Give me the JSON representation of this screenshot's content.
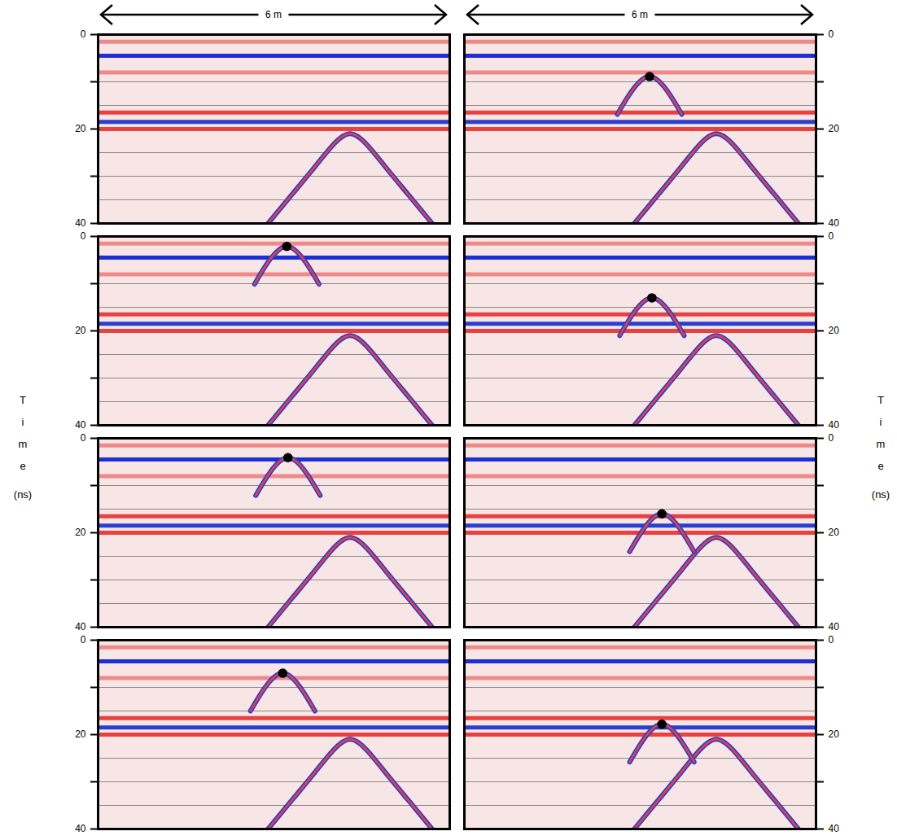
{
  "x_header": "6 m",
  "y_label": "Time (ns)",
  "chart_data": [
    {
      "type": "radargram",
      "xlim": [
        0,
        6
      ],
      "ylim": [
        0,
        40
      ],
      "yticks": [
        0,
        20,
        40
      ],
      "minor_yticks": [
        10,
        30
      ],
      "tick_labels": "y",
      "gridlines": [
        10,
        15,
        20,
        25,
        30,
        35,
        40
      ],
      "bands": [
        {
          "t": 1.5,
          "color": "#f08a8a"
        },
        {
          "t": 4.5,
          "color": "#1b2fd6"
        },
        {
          "t": 8,
          "color": "#f08a8a"
        },
        {
          "t": 16.5,
          "color": "#e8413f"
        },
        {
          "t": 18.5,
          "color": "#2a3fd0"
        },
        {
          "t": 20,
          "color": "#e8413f"
        }
      ],
      "hyperbolas": [
        {
          "x": [
            2.9,
            3.3,
            3.7,
            4.0,
            4.3,
            4.6,
            4.9,
            5.3,
            5.7
          ],
          "t": [
            40,
            34,
            28,
            23.5,
            21,
            23.5,
            28,
            34,
            40
          ]
        }
      ],
      "marker": null
    },
    {
      "type": "radargram",
      "xlim": [
        0,
        6
      ],
      "ylim": [
        0,
        40
      ],
      "yticks": [
        0,
        20,
        40
      ],
      "minor_yticks": [
        10,
        30
      ],
      "tick_labels": "y",
      "gridlines": [
        10,
        15,
        20,
        25,
        30,
        35,
        40
      ],
      "bands": [
        {
          "t": 1.5,
          "color": "#f08a8a"
        },
        {
          "t": 4.5,
          "color": "#1b2fd6"
        },
        {
          "t": 8,
          "color": "#f08a8a"
        },
        {
          "t": 16.5,
          "color": "#e8413f"
        },
        {
          "t": 18.5,
          "color": "#2a3fd0"
        },
        {
          "t": 20,
          "color": "#e8413f"
        }
      ],
      "hyperbolas": [
        {
          "x": [
            2.9,
            3.3,
            3.7,
            4.0,
            4.3,
            4.6,
            4.9,
            5.3,
            5.7
          ],
          "t": [
            40,
            34,
            28,
            23.5,
            21,
            23.5,
            28,
            34,
            40
          ]
        },
        {
          "x": [
            2.61,
            2.86,
            3.16,
            3.46,
            3.71
          ],
          "t": [
            16.9,
            11.9,
            8.9,
            11.9,
            16.9
          ]
        }
      ],
      "marker": {
        "x": 3.16,
        "t": 8.9
      }
    },
    {
      "type": "radargram",
      "xlim": [
        0,
        6
      ],
      "ylim": [
        0,
        40
      ],
      "yticks": [
        0,
        20,
        40
      ],
      "minor_yticks": [
        10,
        30
      ],
      "tick_labels": "y",
      "gridlines": [
        10,
        15,
        20,
        25,
        30,
        35,
        40
      ],
      "bands": [
        {
          "t": 1.5,
          "color": "#f08a8a"
        },
        {
          "t": 4.5,
          "color": "#1b2fd6"
        },
        {
          "t": 8,
          "color": "#f08a8a"
        },
        {
          "t": 16.5,
          "color": "#e8413f"
        },
        {
          "t": 18.5,
          "color": "#2a3fd0"
        },
        {
          "t": 20,
          "color": "#e8413f"
        }
      ],
      "hyperbolas": [
        {
          "x": [
            2.9,
            3.3,
            3.7,
            4.0,
            4.3,
            4.6,
            4.9,
            5.3,
            5.7
          ],
          "t": [
            40,
            34,
            28,
            23.5,
            21,
            23.5,
            28,
            34,
            40
          ]
        },
        {
          "x": [
            2.67,
            2.92,
            3.22,
            3.52,
            3.77
          ],
          "t": [
            10.1,
            5.1,
            2.1,
            5.1,
            10.1
          ]
        }
      ],
      "marker": {
        "x": 3.22,
        "t": 2.1
      }
    },
    {
      "type": "radargram",
      "xlim": [
        0,
        6
      ],
      "ylim": [
        0,
        40
      ],
      "yticks": [
        0,
        20,
        40
      ],
      "minor_yticks": [
        10,
        30
      ],
      "tick_labels": "y",
      "gridlines": [
        10,
        15,
        20,
        25,
        30,
        35,
        40
      ],
      "bands": [
        {
          "t": 1.5,
          "color": "#f08a8a"
        },
        {
          "t": 4.5,
          "color": "#1b2fd6"
        },
        {
          "t": 8,
          "color": "#f08a8a"
        },
        {
          "t": 16.5,
          "color": "#e8413f"
        },
        {
          "t": 18.5,
          "color": "#2a3fd0"
        },
        {
          "t": 20,
          "color": "#e8413f"
        }
      ],
      "hyperbolas": [
        {
          "x": [
            2.9,
            3.3,
            3.7,
            4.0,
            4.3,
            4.6,
            4.9,
            5.3,
            5.7
          ],
          "t": [
            40,
            34,
            28,
            23.5,
            21,
            23.5,
            28,
            34,
            40
          ]
        },
        {
          "x": [
            2.65,
            2.9,
            3.2,
            3.5,
            3.75
          ],
          "t": [
            21,
            16,
            13,
            16,
            21
          ]
        }
      ],
      "marker": {
        "x": 3.2,
        "t": 13.0
      }
    },
    {
      "type": "radargram",
      "xlim": [
        0,
        6
      ],
      "ylim": [
        0,
        40
      ],
      "yticks": [
        0,
        20,
        40
      ],
      "minor_yticks": [
        10,
        30
      ],
      "tick_labels": "y",
      "gridlines": [
        10,
        15,
        20,
        25,
        30,
        35,
        40
      ],
      "bands": [
        {
          "t": 1.5,
          "color": "#f08a8a"
        },
        {
          "t": 4.5,
          "color": "#1b2fd6"
        },
        {
          "t": 8,
          "color": "#f08a8a"
        },
        {
          "t": 16.5,
          "color": "#e8413f"
        },
        {
          "t": 18.5,
          "color": "#2a3fd0"
        },
        {
          "t": 20,
          "color": "#e8413f"
        }
      ],
      "hyperbolas": [
        {
          "x": [
            2.9,
            3.3,
            3.7,
            4.0,
            4.3,
            4.6,
            4.9,
            5.3,
            5.7
          ],
          "t": [
            40,
            34,
            28,
            23.5,
            21,
            23.5,
            28,
            34,
            40
          ]
        },
        {
          "x": [
            2.69,
            2.94,
            3.24,
            3.54,
            3.79
          ],
          "t": [
            12.1,
            7.1,
            4.1,
            7.1,
            12.1
          ]
        }
      ],
      "marker": {
        "x": 3.24,
        "t": 4.1
      }
    },
    {
      "type": "radargram",
      "xlim": [
        0,
        6
      ],
      "ylim": [
        0,
        40
      ],
      "yticks": [
        0,
        20,
        40
      ],
      "minor_yticks": [
        10,
        30
      ],
      "tick_labels": "y",
      "gridlines": [
        10,
        15,
        20,
        25,
        30,
        35,
        40
      ],
      "bands": [
        {
          "t": 1.5,
          "color": "#f08a8a"
        },
        {
          "t": 4.5,
          "color": "#1b2fd6"
        },
        {
          "t": 8,
          "color": "#f08a8a"
        },
        {
          "t": 16.5,
          "color": "#e8413f"
        },
        {
          "t": 18.5,
          "color": "#2a3fd0"
        },
        {
          "t": 20,
          "color": "#e8413f"
        }
      ],
      "hyperbolas": [
        {
          "x": [
            2.9,
            3.3,
            3.7,
            4.0,
            4.3,
            4.6,
            4.9,
            5.3,
            5.7
          ],
          "t": [
            40,
            34,
            28,
            23.5,
            21,
            23.5,
            28,
            34,
            40
          ]
        },
        {
          "x": [
            2.82,
            3.07,
            3.37,
            3.67,
            3.92
          ],
          "t": [
            24,
            19,
            16,
            19,
            24
          ]
        }
      ],
      "marker": {
        "x": 3.37,
        "t": 16.0
      }
    },
    {
      "type": "radargram",
      "xlim": [
        0,
        6
      ],
      "ylim": [
        0,
        40
      ],
      "yticks": [
        0,
        20,
        40
      ],
      "minor_yticks": [
        10,
        30
      ],
      "tick_labels": "y",
      "gridlines": [
        10,
        15,
        20,
        25,
        30,
        35,
        40
      ],
      "bands": [
        {
          "t": 1.5,
          "color": "#f08a8a"
        },
        {
          "t": 4.5,
          "color": "#1b2fd6"
        },
        {
          "t": 8,
          "color": "#f08a8a"
        },
        {
          "t": 16.5,
          "color": "#e8413f"
        },
        {
          "t": 18.5,
          "color": "#2a3fd0"
        },
        {
          "t": 20,
          "color": "#e8413f"
        }
      ],
      "hyperbolas": [
        {
          "x": [
            2.9,
            3.3,
            3.7,
            4.0,
            4.3,
            4.6,
            4.9,
            5.3,
            5.7
          ],
          "t": [
            40,
            34,
            28,
            23.5,
            21,
            23.5,
            28,
            34,
            40
          ]
        },
        {
          "x": [
            2.6,
            2.85,
            3.15,
            3.45,
            3.7
          ],
          "t": [
            15,
            10,
            7,
            10,
            15
          ]
        }
      ],
      "marker": {
        "x": 3.15,
        "t": 7.0
      }
    },
    {
      "type": "radargram",
      "xlim": [
        0,
        6
      ],
      "ylim": [
        0,
        40
      ],
      "yticks": [
        0,
        20,
        40
      ],
      "minor_yticks": [
        10,
        30
      ],
      "tick_labels": "y",
      "gridlines": [
        10,
        15,
        20,
        25,
        30,
        35,
        40
      ],
      "bands": [
        {
          "t": 1.5,
          "color": "#f08a8a"
        },
        {
          "t": 4.5,
          "color": "#1b2fd6"
        },
        {
          "t": 8,
          "color": "#f08a8a"
        },
        {
          "t": 16.5,
          "color": "#e8413f"
        },
        {
          "t": 18.5,
          "color": "#2a3fd0"
        },
        {
          "t": 20,
          "color": "#e8413f"
        }
      ],
      "hyperbolas": [
        {
          "x": [
            2.9,
            3.3,
            3.7,
            4.0,
            4.3,
            4.6,
            4.9,
            5.3,
            5.7
          ],
          "t": [
            40,
            34,
            28,
            23.5,
            21,
            23.5,
            28,
            34,
            40
          ]
        },
        {
          "x": [
            2.82,
            3.07,
            3.37,
            3.67,
            3.92
          ],
          "t": [
            25.8,
            20.8,
            17.8,
            20.8,
            25.8
          ]
        }
      ],
      "marker": {
        "x": 3.37,
        "t": 17.8
      }
    }
  ]
}
